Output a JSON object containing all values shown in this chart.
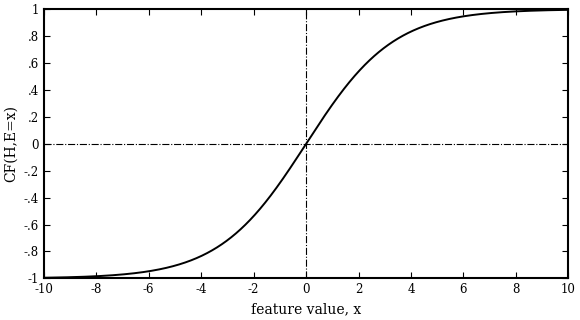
{
  "title": "",
  "xlabel": "feature value, x",
  "ylabel": "CF(H,E=x)",
  "xlim": [
    -10,
    10
  ],
  "ylim": [
    -1,
    1
  ],
  "xticks": [
    -10,
    -8,
    -6,
    -4,
    -2,
    0,
    2,
    4,
    6,
    8,
    10
  ],
  "ytick_values": [
    -1.0,
    -0.8,
    -0.6,
    -0.4,
    -0.2,
    0.0,
    0.2,
    0.4,
    0.6,
    0.8,
    1.0
  ],
  "ytick_labels": [
    "-1",
    "-.8",
    "-.6",
    "-.4",
    "-.2",
    "0",
    ".2",
    ".4",
    ".6",
    ".8",
    "1"
  ],
  "curve_color": "#000000",
  "line_width": 1.4,
  "background_color": "#ffffff",
  "ref_line_x": 0,
  "ref_line_y": 0,
  "ref_line_color": "#000000",
  "ref_line_style": "-.",
  "tanh_scale": 0.3
}
